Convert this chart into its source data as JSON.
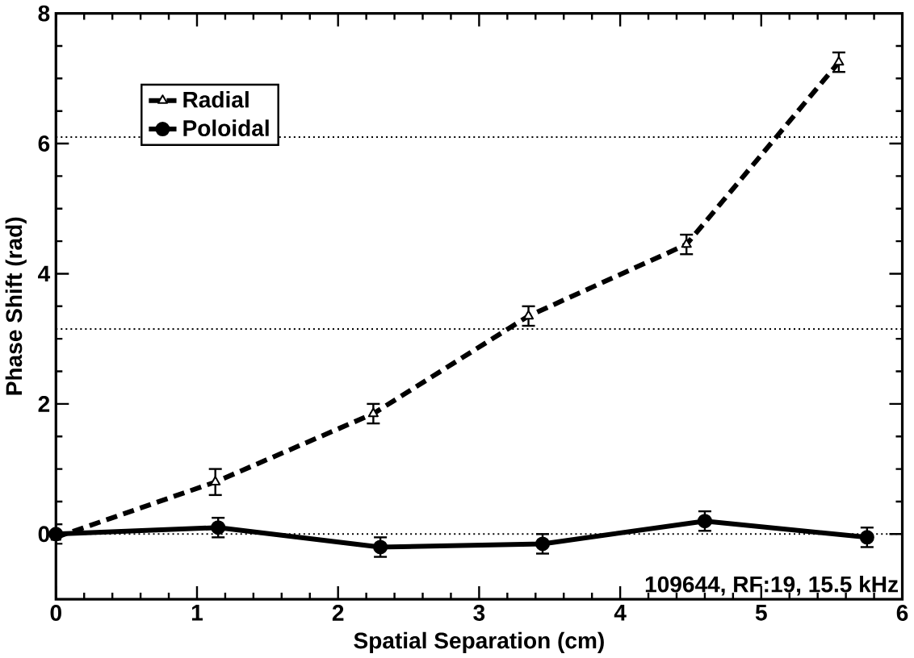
{
  "chart_data": {
    "type": "line",
    "xlabel": "Spatial Separation (cm)",
    "ylabel": "Phase Shift (rad)",
    "xlim": [
      0,
      6
    ],
    "ylim": [
      -1,
      8
    ],
    "xticks": [
      0,
      1,
      2,
      3,
      4,
      5,
      6
    ],
    "yticks": [
      0,
      2,
      4,
      6,
      8
    ],
    "grid": false,
    "legend": "top left",
    "series": [
      {
        "name": "Radial",
        "color": "#000000",
        "marker": "triangle",
        "line_style": "dashed",
        "x": [
          0,
          1.13,
          2.25,
          3.35,
          4.47,
          5.55
        ],
        "values": [
          -0.05,
          0.8,
          1.85,
          3.35,
          4.45,
          7.25
        ],
        "errors": [
          null,
          0.2,
          0.15,
          0.15,
          0.15,
          0.15
        ]
      },
      {
        "name": "Poloidal",
        "color": "#000000",
        "marker": "circle",
        "line_style": "solid",
        "x": [
          0,
          1.15,
          2.3,
          3.45,
          4.6,
          5.75
        ],
        "values": [
          0,
          0.1,
          -0.2,
          -0.15,
          0.2,
          -0.05
        ],
        "errors": [
          0.15,
          0.15,
          0.15,
          0.15,
          0.15,
          0.15
        ]
      }
    ],
    "ref_lines": [
      {
        "axis": "y",
        "value": 6.1,
        "line_style": "dotted",
        "color": "#000000"
      },
      {
        "axis": "y",
        "value": 3.15,
        "line_style": "dotted",
        "color": "#000000"
      },
      {
        "axis": "y",
        "value": 0,
        "line_style": "dotted",
        "color": "#000000"
      }
    ],
    "annotations": [
      "109644, RF:19, 15.5 kHz"
    ]
  }
}
